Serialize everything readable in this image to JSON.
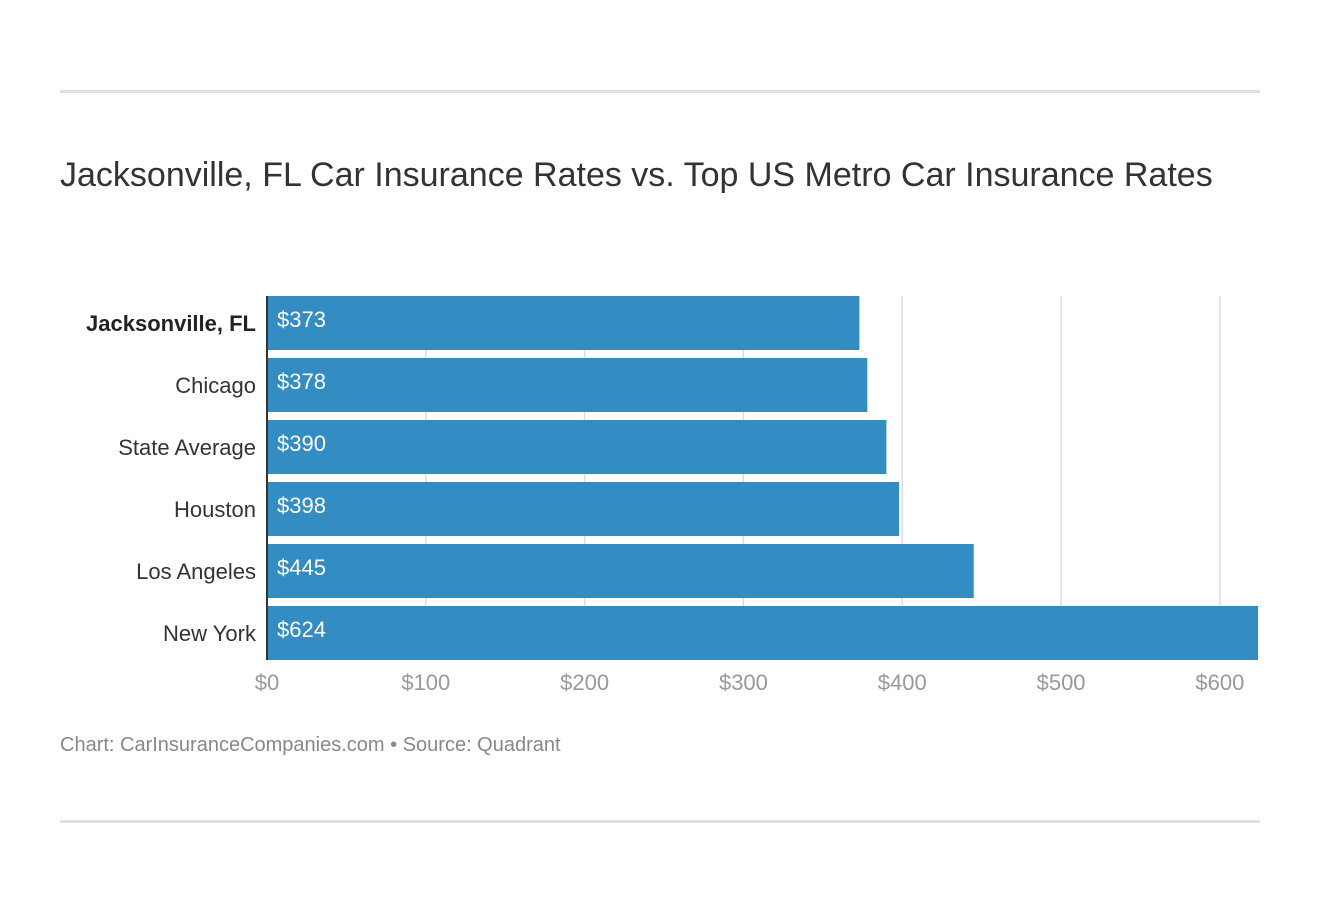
{
  "title": "Jacksonville, FL Car Insurance Rates vs. Top US Metro Car Insurance Rates",
  "caption": "Chart: CarInsuranceCompanies.com • Source: Quadrant",
  "colors": {
    "bar": "#348dc2",
    "grid": "#dddddd",
    "axis": "#333333",
    "tick_label": "#999999",
    "category_label": "#333333",
    "bar_label": "#ffffff"
  },
  "chart_data": {
    "type": "bar",
    "orientation": "horizontal",
    "categories": [
      "Jacksonville, FL",
      "Chicago",
      "State Average",
      "Houston",
      "Los Angeles",
      "New York"
    ],
    "highlight_category": "Jacksonville, FL",
    "values": [
      373,
      378,
      390,
      398,
      445,
      624
    ],
    "value_labels": [
      "$373",
      "$378",
      "$390",
      "$398",
      "$445",
      "$624"
    ],
    "xlim": [
      0,
      624
    ],
    "x_ticks": [
      0,
      100,
      200,
      300,
      400,
      500,
      600
    ],
    "x_tick_labels": [
      "$0",
      "$100",
      "$200",
      "$300",
      "$400",
      "$500",
      "$600"
    ],
    "grid": true,
    "legend": "none"
  }
}
